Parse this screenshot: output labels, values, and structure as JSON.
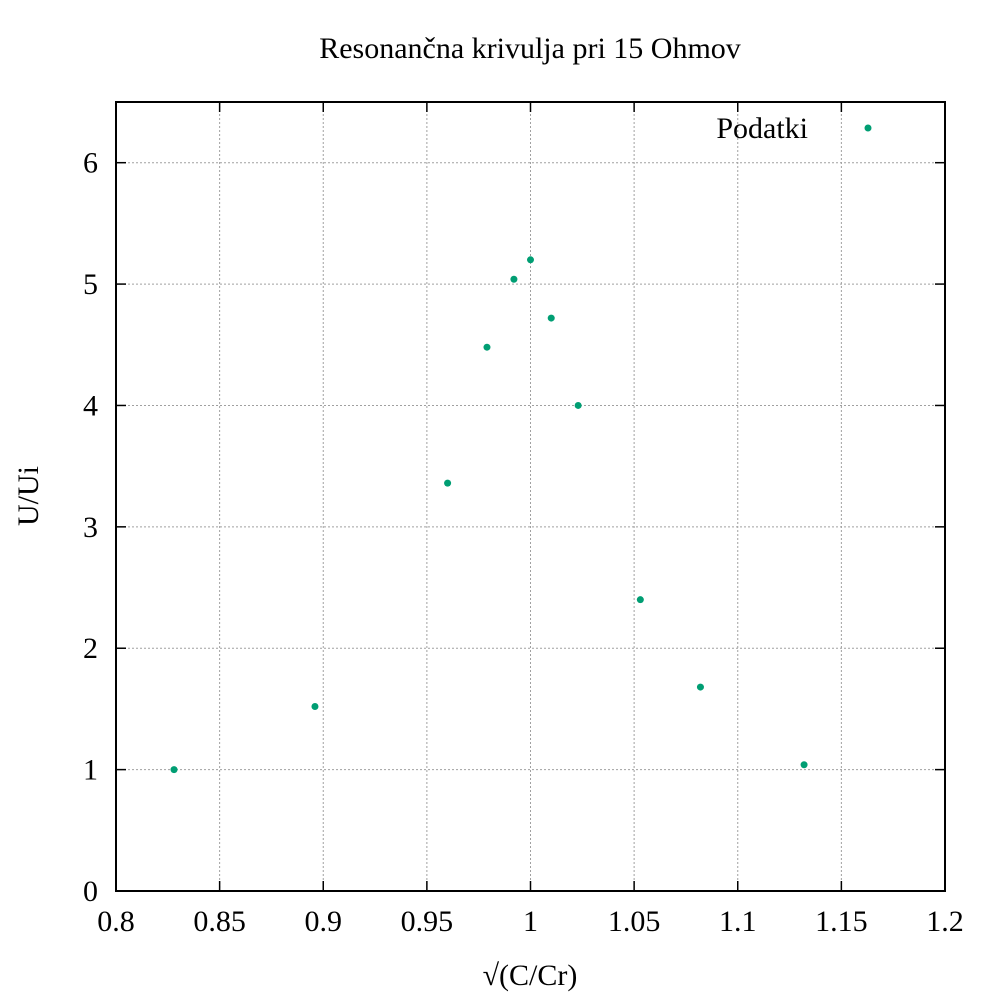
{
  "chart_data": {
    "type": "scatter",
    "title": "Resonančna krivulja pri 15 Ohmov",
    "xlabel": "√(C/Cr)",
    "ylabel": "U/Ui",
    "xlim": [
      0.8,
      1.2
    ],
    "ylim": [
      0,
      6.5
    ],
    "xticks": [
      "0.8",
      "0.85",
      "0.9",
      "0.95",
      "1",
      "1.05",
      "1.1",
      "1.15",
      "1.2"
    ],
    "yticks": [
      "0",
      "1",
      "2",
      "3",
      "4",
      "5",
      "6"
    ],
    "grid": true,
    "legend_position": "top-right",
    "series": [
      {
        "name": "Podatki",
        "color": "#009e73",
        "points": [
          {
            "x": 0.828,
            "y": 1.0
          },
          {
            "x": 0.896,
            "y": 1.52
          },
          {
            "x": 0.96,
            "y": 3.36
          },
          {
            "x": 0.979,
            "y": 4.48
          },
          {
            "x": 0.992,
            "y": 5.04
          },
          {
            "x": 1.0,
            "y": 5.2
          },
          {
            "x": 1.01,
            "y": 4.72
          },
          {
            "x": 1.023,
            "y": 4.0
          },
          {
            "x": 1.053,
            "y": 2.4
          },
          {
            "x": 1.082,
            "y": 1.68
          },
          {
            "x": 1.132,
            "y": 1.04
          }
        ]
      }
    ]
  }
}
